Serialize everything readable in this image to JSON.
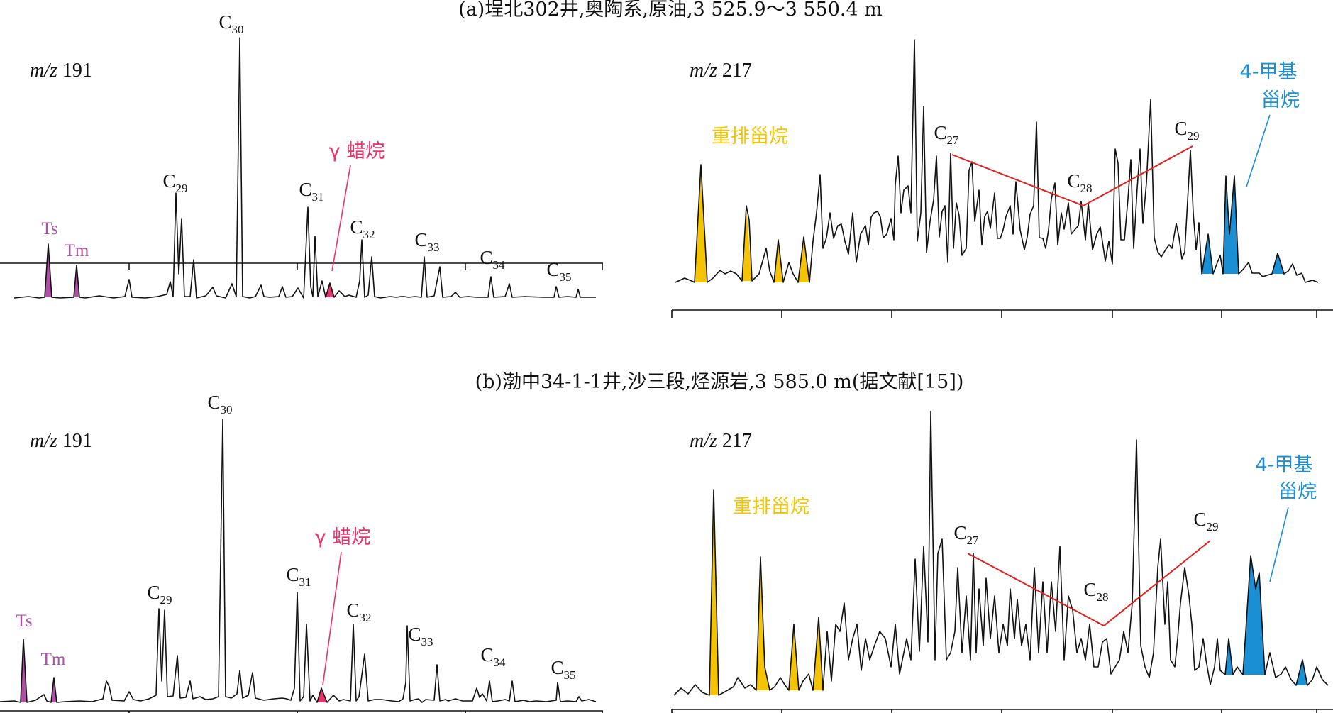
{
  "colors": {
    "trace": "#111111",
    "hopane_markers": "#b04fa6",
    "gammacerane": "#e8336b",
    "diasteranes": "#f5c400",
    "methylsteranes": "#1a8fd4",
    "sterane_line": "#e0201d"
  },
  "chart_data": [
    {
      "panel": "a",
      "type": "line",
      "title": "(a)埕北302井,奥陶系,原油,3 525.9～3 550.4 m",
      "traces": [
        {
          "mz_prefix": "m/z",
          "mz_value": "191",
          "peak_labels": [
            {
              "base": "C",
              "sub": "29"
            },
            {
              "base": "C",
              "sub": "30"
            },
            {
              "base": "C",
              "sub": "31"
            },
            {
              "base": "C",
              "sub": "32"
            },
            {
              "base": "C",
              "sub": "33"
            },
            {
              "base": "C",
              "sub": "34"
            },
            {
              "base": "C",
              "sub": "35"
            }
          ],
          "markers": [
            {
              "label": "Ts",
              "color": "#b04fa6"
            },
            {
              "label": "Tm",
              "color": "#b04fa6"
            }
          ],
          "gammacerane_label": "γ 蜡烷"
        },
        {
          "mz_prefix": "m/z",
          "mz_value": "217",
          "peak_labels": [
            {
              "base": "C",
              "sub": "27"
            },
            {
              "base": "C",
              "sub": "28"
            },
            {
              "base": "C",
              "sub": "29"
            }
          ],
          "diasteranes_label": "重排甾烷",
          "methylsteranes_label": [
            "4-甲基",
            "甾烷"
          ]
        }
      ]
    },
    {
      "panel": "b",
      "type": "line",
      "title": "(b)渤中34-1-1井,沙三段,烃源岩,3 585.0 m(据文献[15])",
      "traces": [
        {
          "mz_prefix": "m/z",
          "mz_value": "191",
          "peak_labels": [
            {
              "base": "C",
              "sub": "29"
            },
            {
              "base": "C",
              "sub": "30"
            },
            {
              "base": "C",
              "sub": "31"
            },
            {
              "base": "C",
              "sub": "32"
            },
            {
              "base": "C",
              "sub": "33"
            },
            {
              "base": "C",
              "sub": "34"
            },
            {
              "base": "C",
              "sub": "35"
            }
          ],
          "markers": [
            {
              "label": "Ts",
              "color": "#b04fa6"
            },
            {
              "label": "Tm",
              "color": "#b04fa6"
            }
          ],
          "gammacerane_label": "γ 蜡烷"
        },
        {
          "mz_prefix": "m/z",
          "mz_value": "217",
          "peak_labels": [
            {
              "base": "C",
              "sub": "27"
            },
            {
              "base": "C",
              "sub": "28"
            },
            {
              "base": "C",
              "sub": "29"
            }
          ],
          "diasteranes_label": "重排甾烷",
          "methylsteranes_label": [
            "4-甲基",
            "甾烷"
          ]
        }
      ]
    }
  ]
}
